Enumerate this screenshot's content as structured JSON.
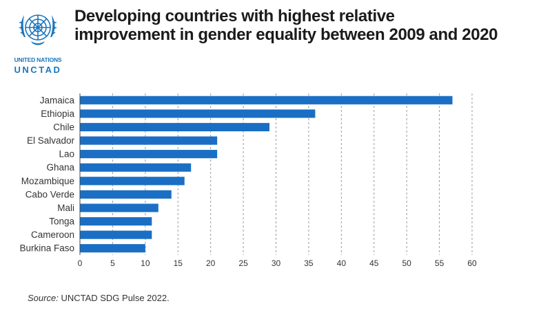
{
  "header": {
    "title_line1": "Developing countries with highest relative",
    "title_line2": "improvement in gender equality between 2009 and 2020"
  },
  "logo": {
    "org_text": "UNITED NATIONS",
    "name_text": "UNCTAD",
    "color": "#1a75bc"
  },
  "chart_data": {
    "type": "bar",
    "orientation": "horizontal",
    "categories": [
      "Jamaica",
      "Ethiopia",
      "Chile",
      "El Salvador",
      "Lao",
      "Ghana",
      "Mozambique",
      "Cabo Verde",
      "Mali",
      "Tonga",
      "Cameroon",
      "Burkina Faso"
    ],
    "values": [
      57,
      36,
      29,
      21,
      21,
      17,
      16,
      14,
      12,
      11,
      11,
      10
    ],
    "xlim": [
      0,
      60
    ],
    "xticks": [
      "0",
      "5",
      "10",
      "15",
      "20",
      "25",
      "30",
      "35",
      "40",
      "45",
      "50",
      "55",
      "60"
    ],
    "grid": "vertical dashed",
    "bar_color": "#1a6fc4"
  },
  "footer": {
    "source_label": "Source:",
    "source_text": "UNCTAD SDG Pulse 2022."
  }
}
